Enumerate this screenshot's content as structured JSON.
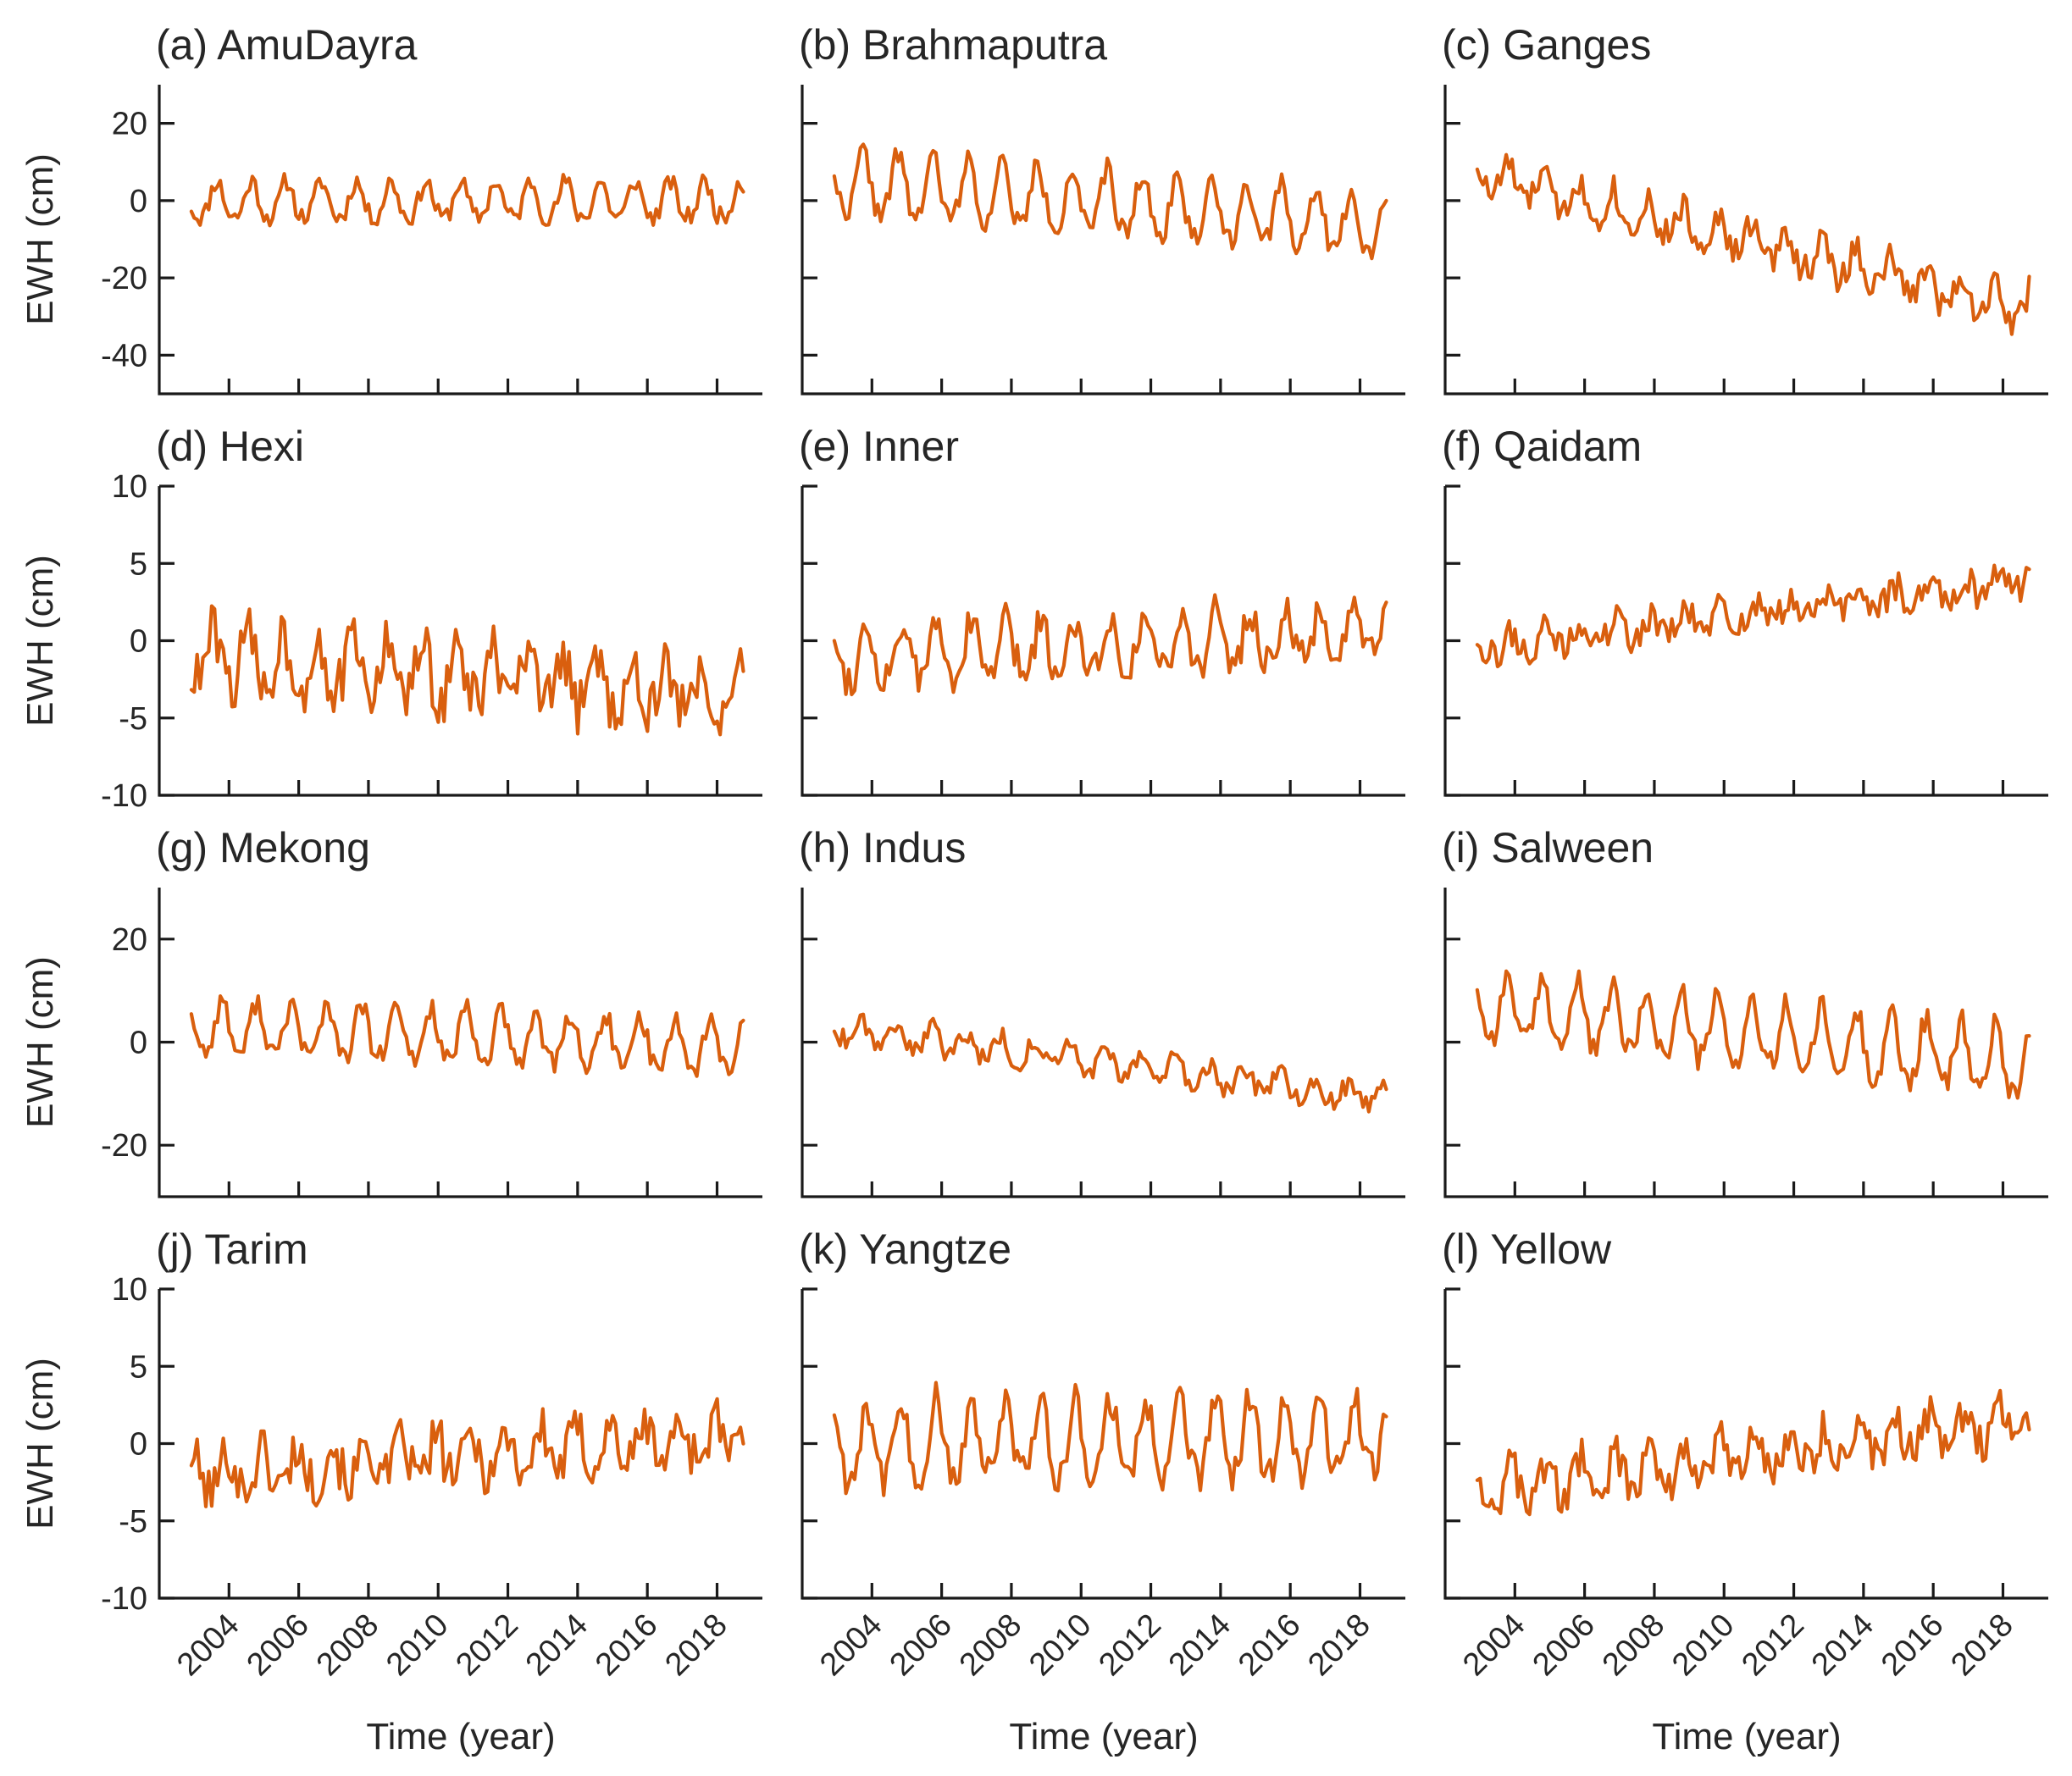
{
  "figure": {
    "line_color": "#d95f0e",
    "axis_color": "#1a1a1a"
  },
  "chart_data": [
    {
      "type": "line",
      "title": "(a) AmuDayra",
      "ylabel": "EWH (cm)",
      "xlabel": "",
      "ylim": [
        -50,
        30
      ],
      "yticks": [
        20,
        0,
        -20,
        -40
      ],
      "xticks": [
        2004,
        2006,
        2008,
        2010,
        2012,
        2014,
        2016,
        2018
      ],
      "xlim": [
        2002.0,
        2019.3
      ],
      "gen": {
        "trend": [
          0,
          0
        ],
        "amp": 8.5,
        "phase": 0.15,
        "noise": 2.5,
        "seed": 11
      },
      "series": [
        {
          "name": "EWH",
          "color": "#d95f0e",
          "x": [],
          "y": []
        }
      ]
    },
    {
      "type": "line",
      "title": "(b) Brahmaputra",
      "ylabel": "",
      "xlabel": "",
      "ylim": [
        -50,
        30
      ],
      "yticks": [
        20,
        0,
        -20,
        -40
      ],
      "xticks": [
        2004,
        2006,
        2008,
        2010,
        2012,
        2014,
        2016,
        2018
      ],
      "xlim": [
        2002.0,
        2019.3
      ],
      "gen": {
        "trend": [
          5,
          -6
        ],
        "amp": 14,
        "phase": 0.25,
        "noise": 3,
        "seed": 22
      },
      "series": [
        {
          "name": "EWH",
          "color": "#d95f0e",
          "x": [],
          "y": []
        }
      ]
    },
    {
      "type": "line",
      "title": "(c) Ganges",
      "ylabel": "",
      "xlabel": "",
      "ylim": [
        -50,
        30
      ],
      "yticks": [
        20,
        0,
        -20,
        -40
      ],
      "xticks": [
        2004,
        2006,
        2008,
        2010,
        2012,
        2014,
        2016,
        2018
      ],
      "xlim": [
        2002.0,
        2019.3
      ],
      "gen": {
        "trend": [
          7,
          -28
        ],
        "amp": 8,
        "phase": 0.3,
        "noise": 4,
        "seed": 33
      },
      "series": [
        {
          "name": "EWH",
          "color": "#d95f0e",
          "x": [],
          "y": []
        }
      ]
    },
    {
      "type": "line",
      "title": "(d) Hexi",
      "ylabel": "EWH (cm)",
      "xlabel": "",
      "ylim": [
        -10,
        10
      ],
      "yticks": [
        10,
        5,
        0,
        -5,
        -10
      ],
      "xticks": [
        2004,
        2006,
        2008,
        2010,
        2012,
        2014,
        2016,
        2018
      ],
      "xlim": [
        2002.0,
        2019.3
      ],
      "gen": {
        "trend": [
          -1,
          -3.5
        ],
        "amp": 3,
        "phase": 0.05,
        "noise": 1.8,
        "seed": 44
      },
      "series": [
        {
          "name": "EWH",
          "color": "#d95f0e",
          "x": [],
          "y": []
        }
      ]
    },
    {
      "type": "line",
      "title": "(e) Inner",
      "ylabel": "",
      "xlabel": "",
      "ylim": [
        -10,
        10
      ],
      "yticks": [
        10,
        5,
        0,
        -5,
        -10
      ],
      "xticks": [
        2004,
        2006,
        2008,
        2010,
        2012,
        2014,
        2016,
        2018
      ],
      "xlim": [
        2002.0,
        2019.3
      ],
      "gen": {
        "trend": [
          -1,
          0.5
        ],
        "amp": 3,
        "phase": 0.35,
        "noise": 1.2,
        "seed": 55
      },
      "series": [
        {
          "name": "EWH",
          "color": "#d95f0e",
          "x": [],
          "y": []
        }
      ]
    },
    {
      "type": "line",
      "title": "(f) Qaidam",
      "ylabel": "",
      "xlabel": "",
      "ylim": [
        -10,
        10
      ],
      "yticks": [
        10,
        5,
        0,
        -5,
        -10
      ],
      "xticks": [
        2004,
        2006,
        2008,
        2010,
        2012,
        2014,
        2016,
        2018
      ],
      "xlim": [
        2002.0,
        2019.3
      ],
      "gen": {
        "trend": [
          -0.5,
          4
        ],
        "amp": 1.2,
        "phase": 0.4,
        "noise": 1.0,
        "seed": 66
      },
      "series": [
        {
          "name": "EWH",
          "color": "#d95f0e",
          "x": [],
          "y": []
        }
      ]
    },
    {
      "type": "line",
      "title": "(g) Mekong",
      "ylabel": "EWH (cm)",
      "xlabel": "",
      "ylim": [
        -30,
        30
      ],
      "yticks": [
        20,
        0,
        -20
      ],
      "xticks": [
        2004,
        2006,
        2008,
        2010,
        2012,
        2014,
        2016,
        2018
      ],
      "xlim": [
        2002.0,
        2019.3
      ],
      "gen": {
        "trend": [
          3,
          -1
        ],
        "amp": 9,
        "phase": 0.3,
        "noise": 2.2,
        "seed": 77
      },
      "series": [
        {
          "name": "EWH",
          "color": "#d95f0e",
          "x": [],
          "y": []
        }
      ]
    },
    {
      "type": "line",
      "title": "(h) Indus",
      "ylabel": "",
      "xlabel": "",
      "ylim": [
        -30,
        30
      ],
      "yticks": [
        20,
        0,
        -20
      ],
      "xticks": [
        2004,
        2006,
        2008,
        2010,
        2012,
        2014,
        2016,
        2018
      ],
      "xlim": [
        2002.0,
        2019.3
      ],
      "gen": {
        "trend": [
          3,
          -11
        ],
        "amp": 4,
        "phase": 0.2,
        "noise": 2.0,
        "seed": 88
      },
      "series": [
        {
          "name": "EWH",
          "color": "#d95f0e",
          "x": [],
          "y": []
        }
      ]
    },
    {
      "type": "line",
      "title": "(i) Salween",
      "ylabel": "",
      "xlabel": "",
      "ylim": [
        -30,
        30
      ],
      "yticks": [
        20,
        0,
        -20
      ],
      "xticks": [
        2004,
        2006,
        2008,
        2010,
        2012,
        2014,
        2016,
        2018
      ],
      "xlim": [
        2002.0,
        2019.3
      ],
      "gen": {
        "trend": [
          7,
          -4
        ],
        "amp": 11,
        "phase": 0.3,
        "noise": 2.5,
        "seed": 99
      },
      "series": [
        {
          "name": "EWH",
          "color": "#d95f0e",
          "x": [],
          "y": []
        }
      ]
    },
    {
      "type": "line",
      "title": "(j) Tarim",
      "ylabel": "EWH (cm)",
      "xlabel": "Time (year)",
      "ylim": [
        -10,
        10
      ],
      "yticks": [
        10,
        5,
        0,
        -5,
        -10
      ],
      "xticks": [
        2004,
        2006,
        2008,
        2010,
        2012,
        2014,
        2016,
        2018
      ],
      "xlim": [
        2002.0,
        2019.3
      ],
      "gen": {
        "trend": [
          -2,
          0.5
        ],
        "amp": 2.2,
        "phase": 0.45,
        "noise": 1.6,
        "seed": 101
      },
      "series": [
        {
          "name": "EWH",
          "color": "#d95f0e",
          "x": [],
          "y": []
        }
      ]
    },
    {
      "type": "line",
      "title": "(k) Yangtze",
      "ylabel": "",
      "xlabel": "Time (year)",
      "ylim": [
        -10,
        10
      ],
      "yticks": [
        10,
        5,
        0,
        -5,
        -10
      ],
      "xticks": [
        2004,
        2006,
        2008,
        2010,
        2012,
        2014,
        2016,
        2018
      ],
      "xlim": [
        2002.0,
        2019.3
      ],
      "gen": {
        "trend": [
          0,
          0.5
        ],
        "amp": 4.5,
        "phase": 0.35,
        "noise": 1.2,
        "seed": 112
      },
      "series": [
        {
          "name": "EWH",
          "color": "#d95f0e",
          "x": [],
          "y": []
        }
      ]
    },
    {
      "type": "line",
      "title": "(l) Yellow",
      "ylabel": "",
      "xlabel": "Time (year)",
      "ylim": [
        -10,
        10
      ],
      "yticks": [
        10,
        5,
        0,
        -5,
        -10
      ],
      "xticks": [
        2004,
        2006,
        2008,
        2010,
        2012,
        2014,
        2016,
        2018
      ],
      "xlim": [
        2002.0,
        2019.3
      ],
      "gen": {
        "trend": [
          -3,
          1.5
        ],
        "amp": 2,
        "phase": 0.4,
        "noise": 1.3,
        "seed": 123
      },
      "series": [
        {
          "name": "EWH",
          "color": "#d95f0e",
          "x": [],
          "y": []
        }
      ]
    }
  ]
}
